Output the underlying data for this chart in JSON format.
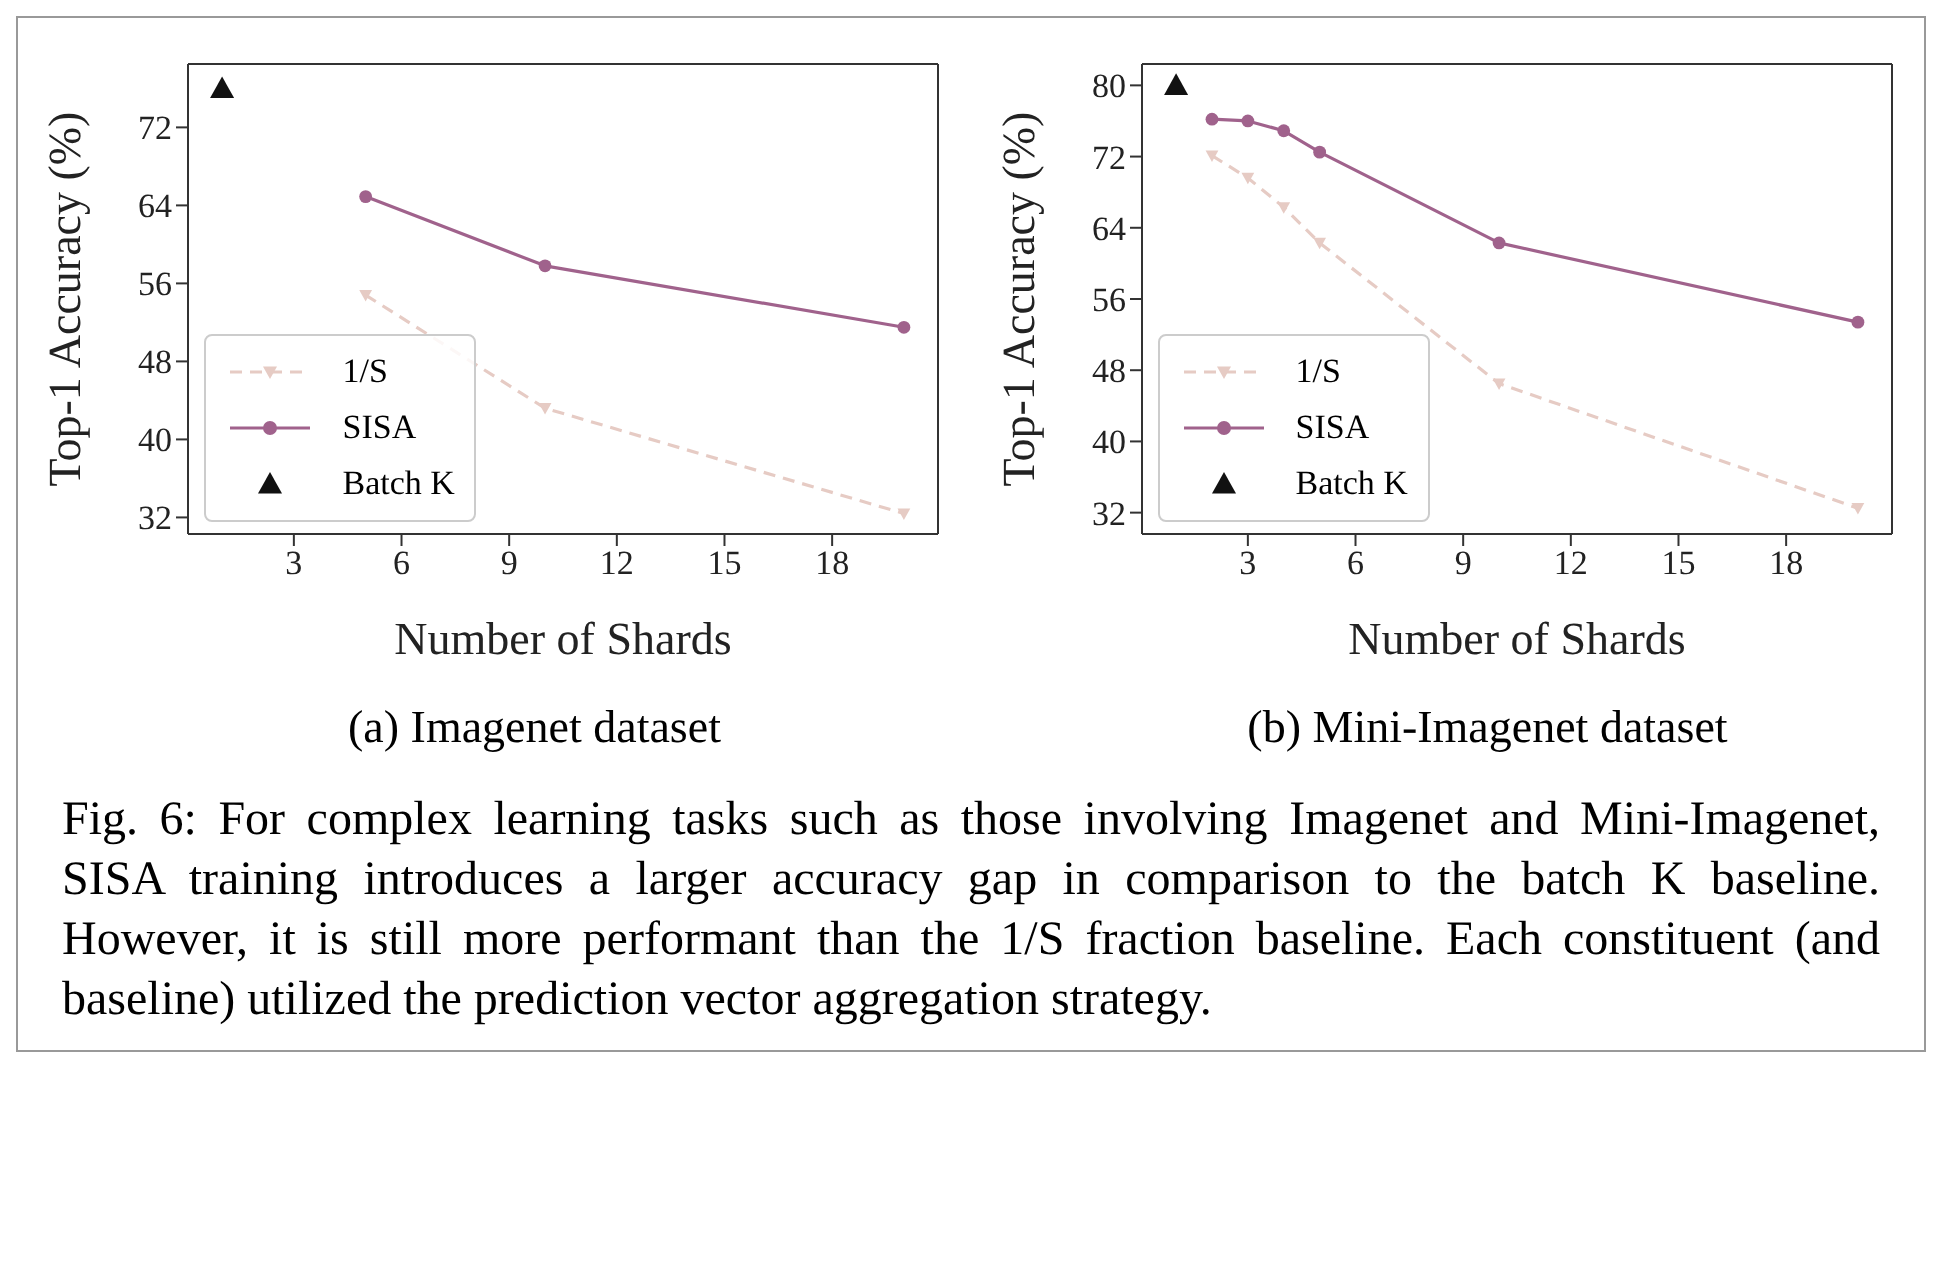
{
  "chart_data": [
    {
      "type": "line",
      "subtitle": "(a) Imagenet dataset",
      "xlabel": "Number of Shards",
      "ylabel": "Top-1 Accuracy (%)",
      "xlim": [
        0.05,
        20.95
      ],
      "xticks": [
        3,
        6,
        9,
        12,
        15,
        18
      ],
      "ylim": [
        30.3,
        78.5
      ],
      "yticks": [
        32,
        40,
        48,
        56,
        64,
        72
      ],
      "grid": false,
      "legend": "bottom left",
      "series": [
        {
          "name": "1/S",
          "color": "#e6cbc4",
          "x": [
            5,
            10,
            20
          ],
          "values": [
            54.8,
            43.2,
            32.4
          ],
          "marker": "triangle",
          "line_style": "dashed"
        },
        {
          "name": "SISA",
          "color": "#a0628c",
          "x": [
            5,
            10,
            20
          ],
          "values": [
            64.9,
            57.8,
            51.5
          ],
          "marker": "circle",
          "line_style": "solid"
        },
        {
          "name": "Batch K",
          "type": "scatter",
          "color": "#111111",
          "x": [
            1
          ],
          "values": [
            76
          ],
          "marker": "triangle"
        }
      ]
    },
    {
      "type": "line",
      "subtitle": "(b) Mini-Imagenet dataset",
      "xlabel": "Number of Shards",
      "ylabel": "Top-1 Accuracy (%)",
      "xlim": [
        0.05,
        20.95
      ],
      "xticks": [
        3,
        6,
        9,
        12,
        15,
        18
      ],
      "ylim": [
        29.6,
        82.4
      ],
      "yticks": [
        32,
        40,
        48,
        56,
        64,
        72,
        80
      ],
      "grid": false,
      "legend": "bottom left",
      "annotations": [
        "Fig. 6: For complex learning tasks such as those involving Imagenet and Mini-Imagenet, SISA training introduces a larger accuracy gap in comparison to the batch K baseline. However, it is still more performant than the 1/S fraction baseline. Each constituent (and baseline) utilized the prediction vector aggregation strategy."
      ],
      "series": [
        {
          "name": "1/S",
          "color": "#e6cbc4",
          "x": [
            2,
            3,
            4,
            5,
            10,
            20
          ],
          "values": [
            72.1,
            69.6,
            66.3,
            62.3,
            46.5,
            32.5
          ],
          "marker": "triangle",
          "line_style": "dashed"
        },
        {
          "name": "SISA",
          "color": "#a0628c",
          "x": [
            2,
            3,
            4,
            5,
            10,
            20
          ],
          "values": [
            76.2,
            76.0,
            74.9,
            72.5,
            62.3,
            53.4
          ],
          "marker": "circle",
          "line_style": "solid"
        },
        {
          "name": "Batch K",
          "type": "scatter",
          "color": "#111111",
          "x": [
            1
          ],
          "values": [
            80
          ],
          "marker": "triangle"
        }
      ]
    }
  ]
}
